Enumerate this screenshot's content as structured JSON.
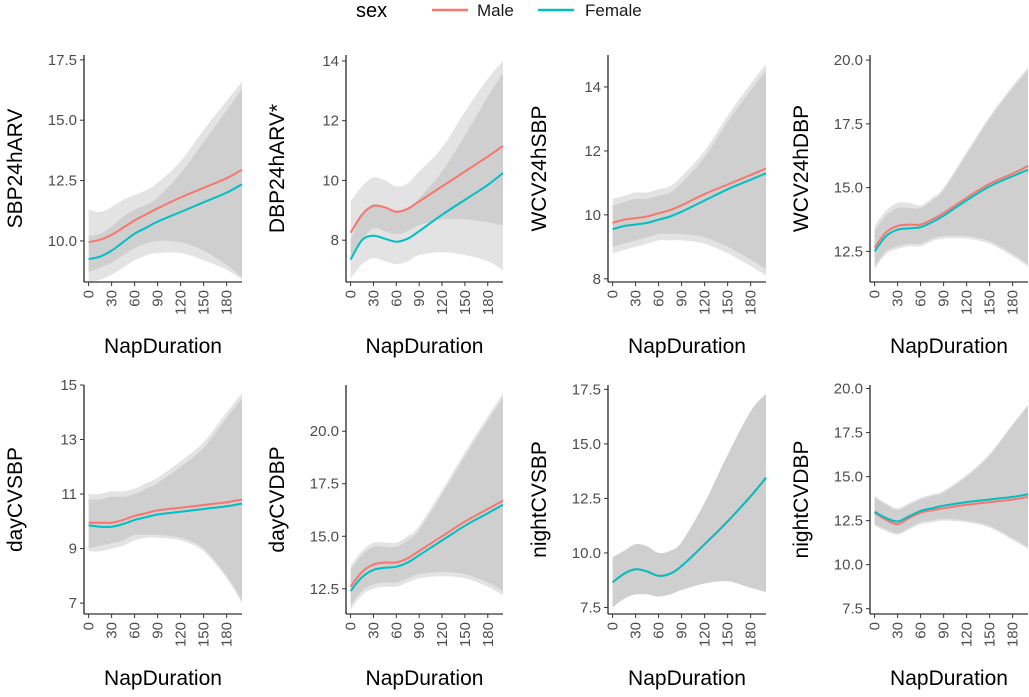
{
  "legend": {
    "title": "sex",
    "entries": [
      {
        "label": "Male",
        "color": "#F8766D"
      },
      {
        "label": "Female",
        "color": "#00BFC4"
      }
    ],
    "placement": "top-center"
  },
  "chart_data": [
    {
      "type": "line",
      "title": "",
      "xlabel": "NapDuration",
      "ylabel": "SBP24hARV",
      "xticks": [
        0,
        30,
        60,
        90,
        120,
        150,
        180
      ],
      "xlim": [
        -6,
        200
      ],
      "yticks": [
        "10.0",
        "12.5",
        "15.0",
        "17.5"
      ],
      "ylim": [
        8.3,
        17.7
      ],
      "x": [
        0,
        15,
        30,
        45,
        60,
        75,
        90,
        120,
        150,
        180,
        200
      ],
      "series": [
        {
          "name": "Male",
          "values": [
            9.95,
            10.05,
            10.25,
            10.55,
            10.85,
            11.1,
            11.35,
            11.8,
            12.2,
            12.6,
            12.95
          ],
          "ci_lower": [
            8.7,
            8.9,
            9.1,
            9.4,
            9.7,
            9.9,
            10.0,
            9.95,
            9.6,
            9.0,
            8.5
          ],
          "ci_upper": [
            11.3,
            11.2,
            11.4,
            11.7,
            11.9,
            12.1,
            12.4,
            13.3,
            14.6,
            15.8,
            16.6
          ]
        },
        {
          "name": "Female",
          "values": [
            9.25,
            9.35,
            9.6,
            9.95,
            10.3,
            10.55,
            10.8,
            11.2,
            11.6,
            12.0,
            12.35
          ],
          "ci_lower": [
            8.3,
            8.4,
            8.6,
            8.9,
            9.2,
            9.4,
            9.5,
            9.5,
            9.2,
            8.8,
            8.4
          ],
          "ci_upper": [
            10.2,
            10.3,
            10.6,
            11.0,
            11.3,
            11.5,
            11.8,
            12.8,
            14.1,
            15.4,
            16.3
          ]
        }
      ]
    },
    {
      "type": "line",
      "title": "",
      "xlabel": "NapDuration",
      "ylabel": "DBP24hARV*",
      "xticks": [
        0,
        30,
        60,
        90,
        120,
        150,
        180
      ],
      "xlim": [
        -6,
        200
      ],
      "yticks": [
        "8",
        "10",
        "12",
        "14"
      ],
      "ylim": [
        6.6,
        14.2
      ],
      "x": [
        0,
        15,
        30,
        45,
        60,
        75,
        90,
        120,
        150,
        180,
        200
      ],
      "series": [
        {
          "name": "Male",
          "values": [
            8.25,
            8.85,
            9.15,
            9.1,
            8.95,
            9.05,
            9.3,
            9.8,
            10.3,
            10.8,
            11.15
          ],
          "ci_lower": [
            7.4,
            8.0,
            8.4,
            8.3,
            8.2,
            8.3,
            8.5,
            8.7,
            8.7,
            8.6,
            8.5
          ],
          "ci_upper": [
            9.3,
            9.8,
            10.1,
            10.0,
            9.8,
            9.9,
            10.3,
            11.1,
            12.3,
            13.4,
            14.0
          ]
        },
        {
          "name": "Female",
          "values": [
            7.35,
            8.0,
            8.15,
            8.05,
            7.95,
            8.05,
            8.3,
            8.85,
            9.35,
            9.85,
            10.25
          ],
          "ci_lower": [
            6.7,
            7.2,
            7.4,
            7.3,
            7.2,
            7.3,
            7.5,
            7.6,
            7.5,
            7.3,
            7.0
          ],
          "ci_upper": [
            8.0,
            8.9,
            9.2,
            9.1,
            9.0,
            9.1,
            9.4,
            10.3,
            11.5,
            12.8,
            13.6
          ]
        }
      ]
    },
    {
      "type": "line",
      "title": "",
      "xlabel": "NapDuration",
      "ylabel": "WCV24hSBP",
      "xticks": [
        0,
        30,
        60,
        90,
        120,
        150,
        180
      ],
      "xlim": [
        -6,
        200
      ],
      "yticks": [
        "8",
        "10",
        "12",
        "14"
      ],
      "ylim": [
        7.9,
        15.0
      ],
      "x": [
        0,
        15,
        30,
        45,
        60,
        75,
        90,
        120,
        150,
        180,
        200
      ],
      "series": [
        {
          "name": "Male",
          "values": [
            9.75,
            9.85,
            9.9,
            9.95,
            10.05,
            10.15,
            10.3,
            10.65,
            10.95,
            11.25,
            11.45
          ],
          "ci_lower": [
            9.0,
            9.1,
            9.2,
            9.3,
            9.4,
            9.4,
            9.4,
            9.3,
            9.0,
            8.6,
            8.3
          ],
          "ci_upper": [
            10.5,
            10.6,
            10.7,
            10.7,
            10.8,
            10.9,
            11.2,
            12.0,
            13.1,
            14.1,
            14.7
          ]
        },
        {
          "name": "Female",
          "values": [
            9.55,
            9.65,
            9.7,
            9.75,
            9.85,
            9.95,
            10.1,
            10.45,
            10.8,
            11.1,
            11.3
          ],
          "ci_lower": [
            8.8,
            8.9,
            9.0,
            9.1,
            9.2,
            9.2,
            9.2,
            9.1,
            8.8,
            8.4,
            8.1
          ],
          "ci_upper": [
            10.3,
            10.4,
            10.5,
            10.5,
            10.6,
            10.7,
            11.0,
            11.8,
            12.9,
            13.9,
            14.5
          ]
        }
      ]
    },
    {
      "type": "line",
      "title": "",
      "xlabel": "NapDuration",
      "ylabel": "WCV24hDBP",
      "xticks": [
        0,
        30,
        60,
        90,
        120,
        150,
        180
      ],
      "xlim": [
        -6,
        200
      ],
      "yticks": [
        "12.5",
        "15.0",
        "17.5",
        "20.0"
      ],
      "ylim": [
        11.3,
        20.2
      ],
      "x": [
        0,
        15,
        30,
        45,
        60,
        75,
        90,
        120,
        150,
        180,
        200
      ],
      "series": [
        {
          "name": "Male",
          "values": [
            12.65,
            13.25,
            13.5,
            13.55,
            13.55,
            13.75,
            14.0,
            14.6,
            15.15,
            15.55,
            15.85
          ],
          "ci_lower": [
            11.9,
            12.5,
            12.7,
            12.8,
            12.8,
            13.0,
            13.1,
            13.1,
            12.9,
            12.4,
            12.0
          ],
          "ci_upper": [
            13.5,
            14.1,
            14.4,
            14.4,
            14.3,
            14.6,
            15.0,
            16.4,
            17.8,
            19.0,
            19.7
          ]
        },
        {
          "name": "Female",
          "values": [
            12.5,
            13.1,
            13.35,
            13.4,
            13.45,
            13.65,
            13.9,
            14.5,
            15.05,
            15.45,
            15.7
          ],
          "ci_lower": [
            11.8,
            12.4,
            12.6,
            12.7,
            12.7,
            12.9,
            13.0,
            13.0,
            12.8,
            12.3,
            11.9
          ],
          "ci_upper": [
            13.3,
            13.9,
            14.2,
            14.2,
            14.2,
            14.5,
            14.9,
            16.3,
            17.7,
            18.9,
            19.6
          ]
        }
      ]
    },
    {
      "type": "line",
      "title": "",
      "xlabel": "NapDuration",
      "ylabel": "dayCVSBP",
      "xticks": [
        0,
        30,
        60,
        90,
        120,
        150,
        180
      ],
      "xlim": [
        -6,
        200
      ],
      "yticks": [
        "7",
        "9",
        "11",
        "13",
        "15"
      ],
      "ylim": [
        6.6,
        15.0
      ],
      "x": [
        0,
        15,
        30,
        45,
        60,
        75,
        90,
        120,
        150,
        180,
        200
      ],
      "series": [
        {
          "name": "Male",
          "values": [
            9.95,
            9.95,
            9.95,
            10.05,
            10.2,
            10.3,
            10.4,
            10.5,
            10.6,
            10.7,
            10.8
          ],
          "ci_lower": [
            9.0,
            9.1,
            9.2,
            9.3,
            9.5,
            9.5,
            9.5,
            9.4,
            9.0,
            8.0,
            7.1
          ],
          "ci_upper": [
            11.0,
            11.0,
            11.1,
            11.1,
            11.2,
            11.4,
            11.6,
            12.2,
            12.9,
            14.0,
            14.7
          ]
        },
        {
          "name": "Female",
          "values": [
            9.85,
            9.8,
            9.8,
            9.9,
            10.05,
            10.15,
            10.25,
            10.35,
            10.45,
            10.55,
            10.65
          ],
          "ci_lower": [
            8.9,
            8.9,
            9.0,
            9.1,
            9.3,
            9.4,
            9.4,
            9.3,
            8.9,
            7.9,
            7.0
          ],
          "ci_upper": [
            10.8,
            10.8,
            10.9,
            10.9,
            11.0,
            11.2,
            11.4,
            12.0,
            12.7,
            13.8,
            14.5
          ]
        }
      ]
    },
    {
      "type": "line",
      "title": "",
      "xlabel": "NapDuration",
      "ylabel": "dayCVDBP",
      "xticks": [
        0,
        30,
        60,
        90,
        120,
        150,
        180
      ],
      "xlim": [
        -6,
        200
      ],
      "yticks": [
        "12.5",
        "15.0",
        "17.5",
        "20.0"
      ],
      "ylim": [
        11.3,
        22.2
      ],
      "x": [
        0,
        15,
        30,
        45,
        60,
        75,
        90,
        120,
        150,
        180,
        200
      ],
      "series": [
        {
          "name": "Male",
          "values": [
            12.6,
            13.3,
            13.65,
            13.75,
            13.75,
            13.95,
            14.3,
            15.0,
            15.7,
            16.3,
            16.7
          ],
          "ci_lower": [
            11.7,
            12.4,
            12.7,
            12.8,
            12.8,
            13.0,
            13.2,
            13.3,
            13.2,
            12.8,
            12.4
          ],
          "ci_upper": [
            13.6,
            14.3,
            14.7,
            14.7,
            14.7,
            15.0,
            15.5,
            17.2,
            19.0,
            20.7,
            21.8
          ]
        },
        {
          "name": "Female",
          "values": [
            12.4,
            13.05,
            13.4,
            13.5,
            13.55,
            13.75,
            14.1,
            14.8,
            15.5,
            16.1,
            16.5
          ],
          "ci_lower": [
            11.5,
            12.2,
            12.5,
            12.6,
            12.6,
            12.8,
            13.0,
            13.1,
            13.0,
            12.6,
            12.2
          ],
          "ci_upper": [
            13.4,
            14.1,
            14.5,
            14.5,
            14.5,
            14.8,
            15.3,
            17.0,
            18.8,
            20.5,
            21.6
          ]
        }
      ]
    },
    {
      "type": "line",
      "title": "",
      "xlabel": "NapDuration",
      "ylabel": "nightCVSBP",
      "xticks": [
        0,
        30,
        60,
        90,
        120,
        150,
        180
      ],
      "xlim": [
        -6,
        200
      ],
      "yticks": [
        "7.5",
        "10.0",
        "12.5",
        "15.0",
        "17.5"
      ],
      "ylim": [
        7.2,
        17.7
      ],
      "x": [
        0,
        15,
        30,
        45,
        60,
        75,
        90,
        120,
        150,
        180,
        200
      ],
      "series": [
        {
          "name": "Male",
          "values": [
            8.65,
            9.05,
            9.25,
            9.15,
            8.95,
            9.05,
            9.4,
            10.4,
            11.45,
            12.6,
            13.45
          ],
          "ci_lower": [
            7.5,
            7.9,
            8.1,
            8.1,
            8.0,
            8.1,
            8.3,
            8.6,
            8.7,
            8.4,
            8.2
          ],
          "ci_upper": [
            9.8,
            10.1,
            10.4,
            10.3,
            10.0,
            10.1,
            10.5,
            12.3,
            14.5,
            16.5,
            17.3
          ]
        },
        {
          "name": "Female",
          "values": [
            8.65,
            9.05,
            9.25,
            9.15,
            8.95,
            9.05,
            9.4,
            10.4,
            11.45,
            12.6,
            13.45
          ],
          "ci_lower": [
            7.5,
            7.9,
            8.1,
            8.1,
            8.0,
            8.1,
            8.3,
            8.6,
            8.7,
            8.4,
            8.2
          ],
          "ci_upper": [
            9.8,
            10.1,
            10.4,
            10.3,
            10.0,
            10.1,
            10.5,
            12.3,
            14.5,
            16.5,
            17.3
          ]
        }
      ]
    },
    {
      "type": "line",
      "title": "",
      "xlabel": "NapDuration",
      "ylabel": "nightCVDBP",
      "xticks": [
        0,
        30,
        60,
        90,
        120,
        150,
        180
      ],
      "xlim": [
        -6,
        200
      ],
      "yticks": [
        "7.5",
        "10.0",
        "12.5",
        "15.0",
        "17.5",
        "20.0"
      ],
      "ylim": [
        7.2,
        20.2
      ],
      "x": [
        0,
        15,
        30,
        45,
        60,
        75,
        90,
        120,
        150,
        180,
        200
      ],
      "series": [
        {
          "name": "Male",
          "values": [
            12.95,
            12.55,
            12.3,
            12.65,
            12.95,
            13.1,
            13.2,
            13.4,
            13.55,
            13.7,
            13.85
          ],
          "ci_lower": [
            12.2,
            11.9,
            11.7,
            12.0,
            12.3,
            12.4,
            12.5,
            12.4,
            12.1,
            11.4,
            10.9
          ],
          "ci_upper": [
            13.8,
            13.4,
            13.1,
            13.4,
            13.7,
            13.9,
            14.1,
            15.0,
            16.2,
            17.9,
            19.0
          ]
        },
        {
          "name": "Female",
          "values": [
            13.0,
            12.65,
            12.45,
            12.75,
            13.05,
            13.2,
            13.35,
            13.55,
            13.7,
            13.85,
            14.0
          ],
          "ci_lower": [
            12.3,
            12.0,
            11.8,
            12.1,
            12.4,
            12.5,
            12.6,
            12.5,
            12.2,
            11.5,
            11.0
          ],
          "ci_upper": [
            13.9,
            13.5,
            13.2,
            13.5,
            13.8,
            14.0,
            14.2,
            15.1,
            16.3,
            18.0,
            19.1
          ]
        }
      ]
    }
  ]
}
